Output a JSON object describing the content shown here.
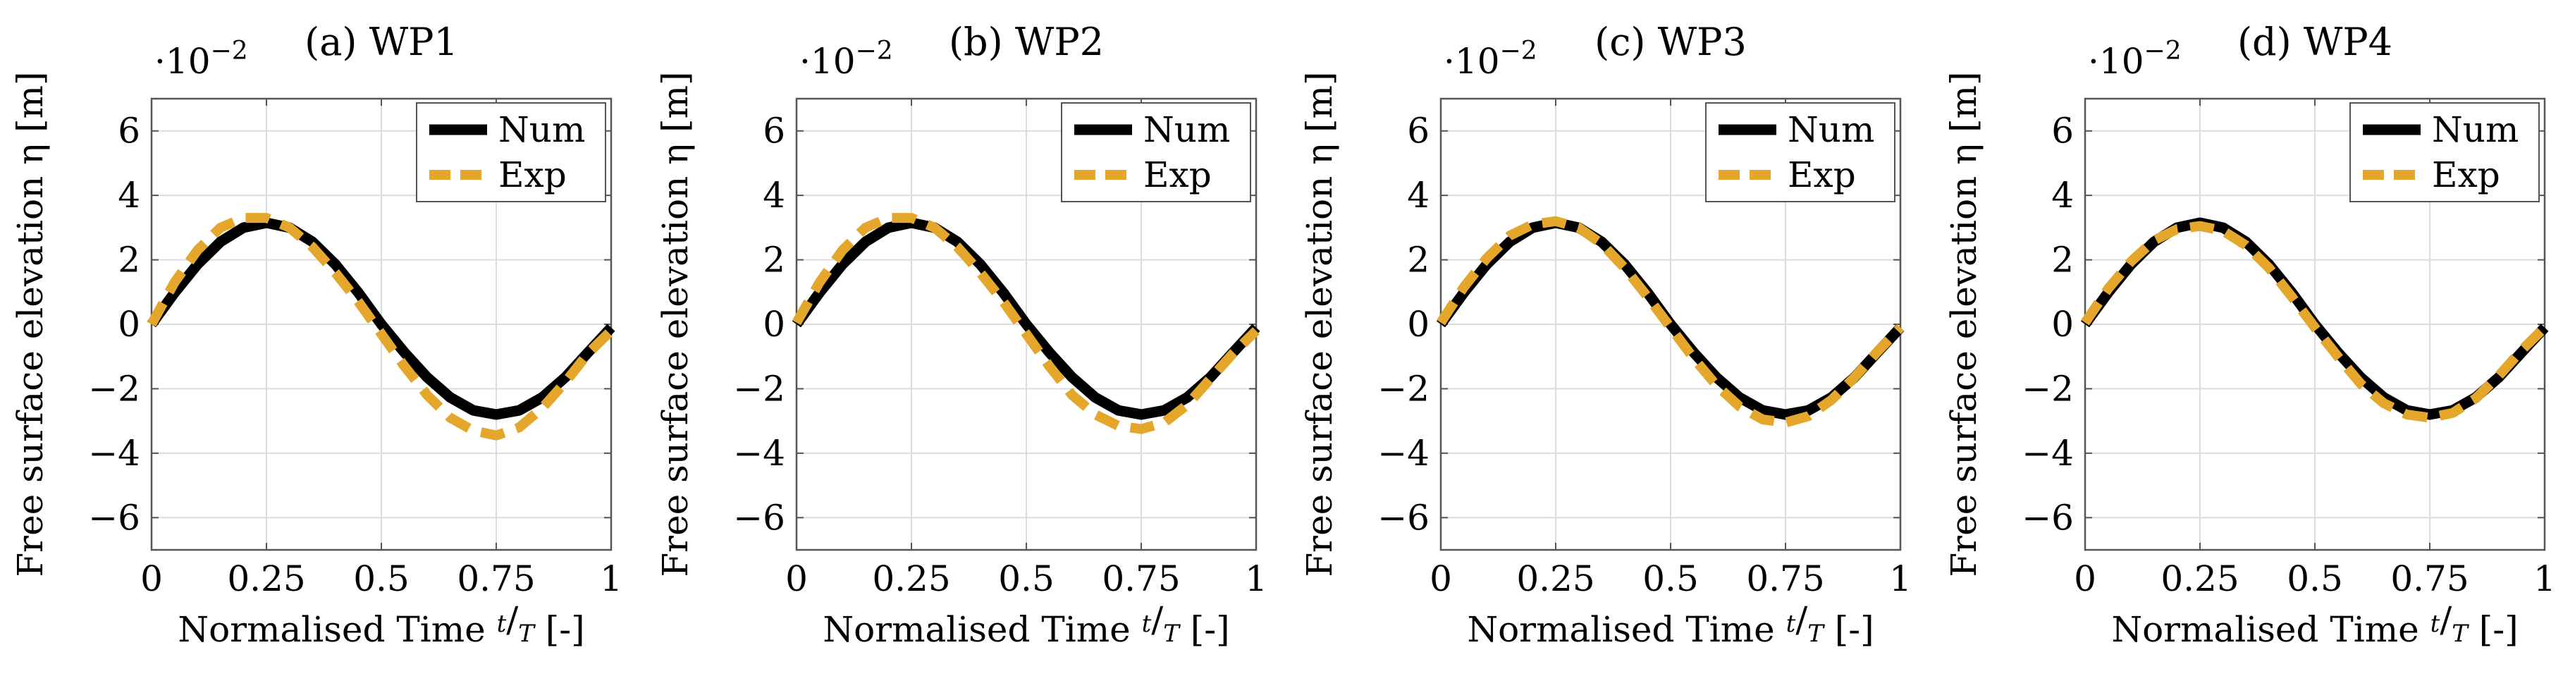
{
  "figure": {
    "colors": {
      "num": "#000000",
      "exp": "#E4A62B",
      "grid": "#dddddd",
      "axis": "#555555"
    },
    "ylabel": "Free surface elevation η [m]",
    "xlabel_prefix": "Normalised Time ",
    "xlabel_frac_num": "t",
    "xlabel_frac_den": "T",
    "xlabel_suffix": " [-]",
    "yscale_base": "·10",
    "yscale_exp": "−2"
  },
  "chart_data": [
    {
      "type": "line",
      "title": "(a) WP1",
      "xlim": [
        0,
        1
      ],
      "ylim": [
        -7,
        7
      ],
      "xticks": [
        0,
        0.25,
        0.5,
        0.75,
        1
      ],
      "xtick_labels": [
        "0",
        "0.25",
        "0.5",
        "0.75",
        "1"
      ],
      "yticks": [
        -6,
        -4,
        -2,
        0,
        2,
        4,
        6
      ],
      "ytick_labels": [
        "−6",
        "−4",
        "−2",
        "0",
        "2",
        "4",
        "6"
      ],
      "grid": true,
      "legend_position": "top-right",
      "y_scale_factor": "·10^-2",
      "series": [
        {
          "name": "Num",
          "style": "solid",
          "x": [
            0,
            0.05,
            0.1,
            0.15,
            0.2,
            0.25,
            0.3,
            0.35,
            0.4,
            0.45,
            0.5,
            0.55,
            0.6,
            0.65,
            0.7,
            0.75,
            0.8,
            0.85,
            0.9,
            0.95,
            1.0
          ],
          "y": [
            0.0,
            0.98,
            1.86,
            2.56,
            3.0,
            3.15,
            3.0,
            2.56,
            1.86,
            0.98,
            0.0,
            -0.87,
            -1.65,
            -2.27,
            -2.67,
            -2.8,
            -2.67,
            -2.27,
            -1.65,
            -0.87,
            -0.1
          ]
        },
        {
          "name": "Exp",
          "style": "dashed",
          "x": [
            0,
            0.05,
            0.1,
            0.15,
            0.2,
            0.25,
            0.3,
            0.35,
            0.4,
            0.45,
            0.5,
            0.55,
            0.6,
            0.65,
            0.7,
            0.75,
            0.8,
            0.85,
            0.9,
            0.95,
            1.0
          ],
          "y": [
            0.0,
            1.3,
            2.3,
            3.0,
            3.3,
            3.3,
            3.0,
            2.4,
            1.6,
            0.7,
            -0.3,
            -1.3,
            -2.2,
            -2.9,
            -3.3,
            -3.45,
            -3.2,
            -2.6,
            -1.8,
            -0.9,
            -0.2
          ]
        }
      ]
    },
    {
      "type": "line",
      "title": "(b) WP2",
      "xlim": [
        0,
        1
      ],
      "ylim": [
        -7,
        7
      ],
      "xticks": [
        0,
        0.25,
        0.5,
        0.75,
        1
      ],
      "xtick_labels": [
        "0",
        "0.25",
        "0.5",
        "0.75",
        "1"
      ],
      "yticks": [
        -6,
        -4,
        -2,
        0,
        2,
        4,
        6
      ],
      "ytick_labels": [
        "−6",
        "−4",
        "−2",
        "0",
        "2",
        "4",
        "6"
      ],
      "grid": true,
      "legend_position": "top-right",
      "y_scale_factor": "·10^-2",
      "series": [
        {
          "name": "Num",
          "style": "solid",
          "x": [
            0,
            0.05,
            0.1,
            0.15,
            0.2,
            0.25,
            0.3,
            0.35,
            0.4,
            0.45,
            0.5,
            0.55,
            0.6,
            0.65,
            0.7,
            0.75,
            0.8,
            0.85,
            0.9,
            0.95,
            1.0
          ],
          "y": [
            0.0,
            0.98,
            1.86,
            2.56,
            3.0,
            3.15,
            3.0,
            2.56,
            1.86,
            0.98,
            0.0,
            -0.87,
            -1.65,
            -2.27,
            -2.67,
            -2.8,
            -2.67,
            -2.27,
            -1.65,
            -0.87,
            -0.1
          ]
        },
        {
          "name": "Exp",
          "style": "dashed",
          "x": [
            0,
            0.05,
            0.1,
            0.15,
            0.2,
            0.25,
            0.3,
            0.35,
            0.4,
            0.45,
            0.5,
            0.55,
            0.6,
            0.65,
            0.7,
            0.75,
            0.8,
            0.85,
            0.9,
            0.95,
            1.0
          ],
          "y": [
            0.05,
            1.3,
            2.3,
            3.0,
            3.3,
            3.3,
            3.0,
            2.4,
            1.6,
            0.7,
            -0.3,
            -1.3,
            -2.2,
            -2.8,
            -3.15,
            -3.25,
            -3.05,
            -2.5,
            -1.7,
            -0.9,
            -0.2
          ]
        }
      ]
    },
    {
      "type": "line",
      "title": "(c) WP3",
      "xlim": [
        0,
        1
      ],
      "ylim": [
        -7,
        7
      ],
      "xticks": [
        0,
        0.25,
        0.5,
        0.75,
        1
      ],
      "xtick_labels": [
        "0",
        "0.25",
        "0.5",
        "0.75",
        "1"
      ],
      "yticks": [
        -6,
        -4,
        -2,
        0,
        2,
        4,
        6
      ],
      "ytick_labels": [
        "−6",
        "−4",
        "−2",
        "0",
        "2",
        "4",
        "6"
      ],
      "grid": true,
      "legend_position": "top-right",
      "y_scale_factor": "·10^-2",
      "series": [
        {
          "name": "Num",
          "style": "solid",
          "x": [
            0,
            0.05,
            0.1,
            0.15,
            0.2,
            0.25,
            0.3,
            0.35,
            0.4,
            0.45,
            0.5,
            0.55,
            0.6,
            0.65,
            0.7,
            0.75,
            0.8,
            0.85,
            0.9,
            0.95,
            1.0
          ],
          "y": [
            0.0,
            0.98,
            1.86,
            2.56,
            3.0,
            3.15,
            3.0,
            2.56,
            1.86,
            0.98,
            0.0,
            -0.87,
            -1.65,
            -2.27,
            -2.67,
            -2.8,
            -2.67,
            -2.27,
            -1.65,
            -0.87,
            -0.1
          ]
        },
        {
          "name": "Exp",
          "style": "dashed",
          "x": [
            0,
            0.05,
            0.1,
            0.15,
            0.2,
            0.25,
            0.3,
            0.35,
            0.4,
            0.45,
            0.5,
            0.55,
            0.6,
            0.65,
            0.7,
            0.75,
            0.8,
            0.85,
            0.9,
            0.95,
            1.0
          ],
          "y": [
            0.05,
            1.15,
            2.05,
            2.75,
            3.1,
            3.2,
            3.0,
            2.5,
            1.75,
            0.85,
            -0.1,
            -1.05,
            -1.9,
            -2.55,
            -2.95,
            -3.05,
            -2.85,
            -2.35,
            -1.65,
            -0.85,
            -0.1
          ]
        }
      ]
    },
    {
      "type": "line",
      "title": "(d) WP4",
      "xlim": [
        0,
        1
      ],
      "ylim": [
        -7,
        7
      ],
      "xticks": [
        0,
        0.25,
        0.5,
        0.75,
        1
      ],
      "xtick_labels": [
        "0",
        "0.25",
        "0.5",
        "0.75",
        "1"
      ],
      "yticks": [
        -6,
        -4,
        -2,
        0,
        2,
        4,
        6
      ],
      "ytick_labels": [
        "−6",
        "−4",
        "−2",
        "0",
        "2",
        "4",
        "6"
      ],
      "grid": true,
      "legend_position": "top-right",
      "y_scale_factor": "·10^-2",
      "series": [
        {
          "name": "Num",
          "style": "solid",
          "x": [
            0,
            0.05,
            0.1,
            0.15,
            0.2,
            0.25,
            0.3,
            0.35,
            0.4,
            0.45,
            0.5,
            0.55,
            0.6,
            0.65,
            0.7,
            0.75,
            0.8,
            0.85,
            0.9,
            0.95,
            1.0
          ],
          "y": [
            0.0,
            0.98,
            1.86,
            2.56,
            3.0,
            3.15,
            3.0,
            2.56,
            1.86,
            0.98,
            0.0,
            -0.87,
            -1.65,
            -2.27,
            -2.67,
            -2.8,
            -2.67,
            -2.27,
            -1.65,
            -0.87,
            -0.1
          ]
        },
        {
          "name": "Exp",
          "style": "dashed",
          "x": [
            0,
            0.05,
            0.1,
            0.15,
            0.2,
            0.25,
            0.3,
            0.35,
            0.4,
            0.45,
            0.5,
            0.55,
            0.6,
            0.65,
            0.7,
            0.75,
            0.8,
            0.85,
            0.9,
            0.95,
            1.0
          ],
          "y": [
            0.05,
            1.1,
            1.95,
            2.6,
            2.95,
            3.05,
            2.9,
            2.45,
            1.75,
            0.85,
            -0.1,
            -1.0,
            -1.85,
            -2.45,
            -2.8,
            -2.9,
            -2.75,
            -2.3,
            -1.6,
            -0.8,
            -0.1
          ]
        }
      ]
    }
  ]
}
